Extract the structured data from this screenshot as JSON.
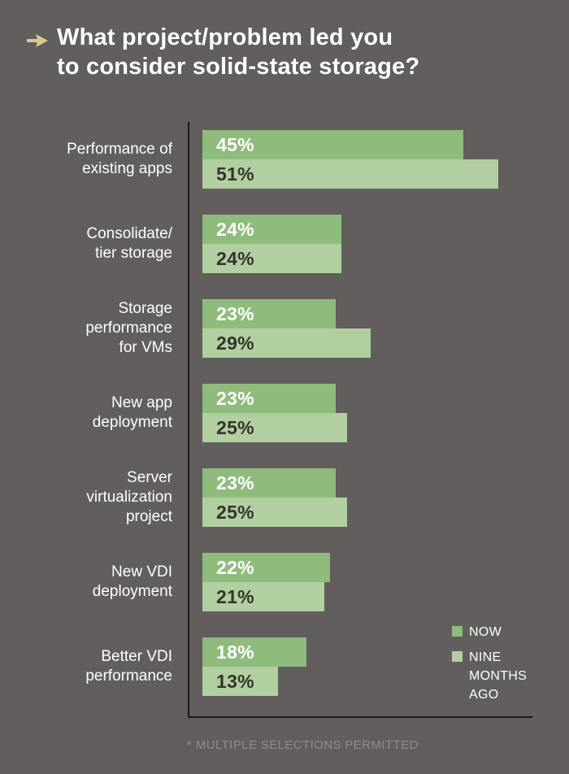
{
  "title": {
    "line1": "What project/problem led you",
    "line2": "to consider solid-state storage?"
  },
  "chart_data": {
    "type": "bar",
    "orientation": "horizontal",
    "title": "What project/problem led you to consider solid-state storage?",
    "categories": [
      "Performance of existing apps",
      "Consolidate/ tier storage",
      "Storage performance for VMs",
      "New app deployment",
      "Server virtualization project",
      "New VDI deployment",
      "Better VDI performance"
    ],
    "category_display_lines": [
      [
        "Performance of",
        "existing apps"
      ],
      [
        "Consolidate/",
        "tier storage"
      ],
      [
        "Storage",
        "performance",
        "for VMs"
      ],
      [
        "New app",
        "deployment"
      ],
      [
        "Server",
        "virtualization",
        "project"
      ],
      [
        "New VDI",
        "deployment"
      ],
      [
        "Better VDI",
        "performance"
      ]
    ],
    "series": [
      {
        "name": "NOW",
        "values": [
          45,
          24,
          23,
          23,
          23,
          22,
          18
        ],
        "color": "#8FBC7D",
        "value_text_color": "#FFFFFF"
      },
      {
        "name": "NINE MONTHS AGO",
        "values": [
          51,
          24,
          29,
          25,
          25,
          21,
          13
        ],
        "color": "#B1CFA1",
        "value_text_color": "#33332E"
      }
    ],
    "value_suffix": "%",
    "xlim": [
      0,
      56.6
    ],
    "grid": false,
    "legend_position": "bottom-right"
  },
  "legend": {
    "items": [
      {
        "label": "NOW",
        "color": "#8FBC7D"
      },
      {
        "label": "NINE MONTHS AGO",
        "color": "#B1CFA1"
      }
    ]
  },
  "footnote": "* MULTIPLE SELECTIONS PERMITTED",
  "colors": {
    "background": "#615E5D",
    "title_text": "#FFFFFF",
    "arrow": "#DCC98B",
    "axis": "#191917",
    "label_text": "#FFFFFF",
    "footnote_text": "#8F8C89"
  }
}
